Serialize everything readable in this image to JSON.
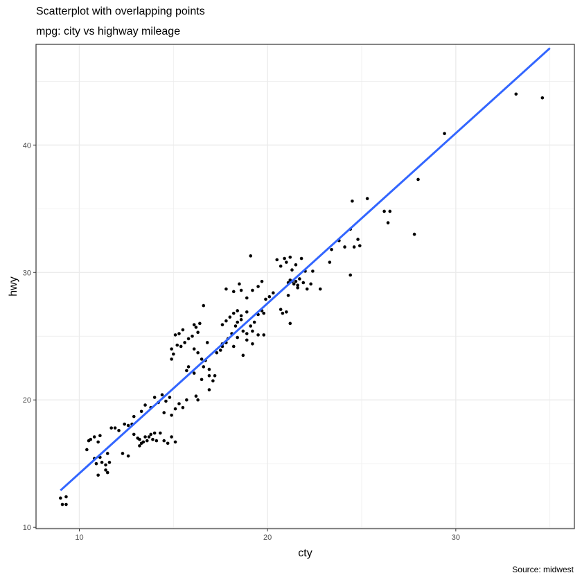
{
  "chart_data": {
    "type": "scatter",
    "title": "Scatterplot with overlapping points",
    "subtitle": "mpg: city vs highway mileage",
    "caption": "Source: midwest",
    "xlabel": "cty",
    "ylabel": "hwy",
    "xlim": [
      7.7,
      36.3
    ],
    "ylim": [
      9.9,
      47.9
    ],
    "x_ticks": [
      10,
      20,
      30
    ],
    "x_tick_labels": [
      "10",
      "20",
      "30"
    ],
    "y_ticks": [
      10,
      20,
      30,
      40
    ],
    "y_tick_labels": [
      "10",
      "20",
      "30",
      "40"
    ],
    "grid": true,
    "points": [
      [
        9.0,
        12.3
      ],
      [
        9.3,
        12.4
      ],
      [
        9.1,
        11.8
      ],
      [
        9.3,
        11.8
      ],
      [
        10.4,
        16.1
      ],
      [
        10.6,
        16.9
      ],
      [
        10.8,
        17.1
      ],
      [
        10.5,
        16.8
      ],
      [
        10.8,
        15.4
      ],
      [
        10.9,
        15.0
      ],
      [
        11.1,
        15.5
      ],
      [
        11.1,
        17.2
      ],
      [
        11.0,
        16.7
      ],
      [
        11.0,
        14.1
      ],
      [
        11.2,
        15.1
      ],
      [
        11.4,
        14.9
      ],
      [
        11.4,
        14.5
      ],
      [
        11.5,
        14.3
      ],
      [
        11.6,
        15.1
      ],
      [
        11.5,
        15.8
      ],
      [
        11.7,
        17.8
      ],
      [
        11.9,
        17.8
      ],
      [
        12.1,
        17.6
      ],
      [
        12.4,
        18.1
      ],
      [
        12.6,
        18.0
      ],
      [
        12.8,
        18.1
      ],
      [
        12.9,
        18.7
      ],
      [
        12.3,
        15.8
      ],
      [
        12.6,
        15.6
      ],
      [
        12.9,
        17.3
      ],
      [
        13.1,
        17.0
      ],
      [
        13.2,
        16.9
      ],
      [
        13.3,
        16.6
      ],
      [
        13.2,
        16.4
      ],
      [
        13.4,
        16.7
      ],
      [
        13.5,
        17.1
      ],
      [
        13.6,
        16.8
      ],
      [
        13.7,
        17.1
      ],
      [
        13.8,
        17.3
      ],
      [
        13.9,
        16.9
      ],
      [
        14.0,
        17.4
      ],
      [
        14.1,
        16.8
      ],
      [
        14.3,
        17.4
      ],
      [
        14.5,
        16.8
      ],
      [
        14.7,
        16.6
      ],
      [
        14.9,
        17.1
      ],
      [
        15.1,
        16.7
      ],
      [
        13.3,
        19.1
      ],
      [
        13.5,
        19.6
      ],
      [
        13.8,
        19.4
      ],
      [
        14.0,
        20.2
      ],
      [
        14.2,
        19.8
      ],
      [
        14.4,
        20.4
      ],
      [
        14.6,
        19.9
      ],
      [
        14.8,
        20.2
      ],
      [
        14.5,
        19.0
      ],
      [
        14.9,
        18.8
      ],
      [
        15.1,
        19.3
      ],
      [
        15.3,
        19.7
      ],
      [
        15.5,
        19.4
      ],
      [
        15.7,
        20.0
      ],
      [
        14.9,
        23.2
      ],
      [
        14.9,
        24.0
      ],
      [
        15.0,
        23.6
      ],
      [
        15.2,
        24.3
      ],
      [
        15.1,
        25.1
      ],
      [
        15.3,
        25.2
      ],
      [
        15.4,
        24.2
      ],
      [
        15.6,
        24.5
      ],
      [
        15.5,
        25.5
      ],
      [
        15.8,
        24.8
      ],
      [
        16.0,
        25.0
      ],
      [
        16.1,
        25.9
      ],
      [
        16.2,
        25.7
      ],
      [
        16.3,
        25.3
      ],
      [
        16.4,
        26.0
      ],
      [
        16.6,
        27.4
      ],
      [
        16.1,
        24.0
      ],
      [
        16.3,
        23.7
      ],
      [
        16.5,
        23.2
      ],
      [
        16.7,
        23.1
      ],
      [
        16.8,
        24.5
      ],
      [
        16.6,
        22.6
      ],
      [
        16.9,
        22.4
      ],
      [
        15.7,
        22.3
      ],
      [
        15.8,
        22.6
      ],
      [
        16.1,
        22.1
      ],
      [
        16.9,
        21.9
      ],
      [
        16.2,
        20.3
      ],
      [
        16.3,
        20.0
      ],
      [
        16.5,
        21.6
      ],
      [
        16.9,
        20.8
      ],
      [
        17.1,
        21.5
      ],
      [
        17.2,
        21.9
      ],
      [
        17.6,
        24.2
      ],
      [
        17.8,
        24.5
      ],
      [
        17.9,
        24.8
      ],
      [
        18.1,
        25.2
      ],
      [
        18.3,
        25.8
      ],
      [
        18.4,
        26.1
      ],
      [
        18.6,
        26.3
      ],
      [
        17.6,
        25.9
      ],
      [
        17.8,
        26.2
      ],
      [
        18.0,
        26.5
      ],
      [
        18.2,
        26.8
      ],
      [
        18.4,
        27.0
      ],
      [
        18.6,
        26.6
      ],
      [
        18.9,
        26.9
      ],
      [
        18.7,
        25.4
      ],
      [
        18.9,
        25.2
      ],
      [
        19.1,
        25.8
      ],
      [
        19.3,
        26.1
      ],
      [
        19.5,
        26.7
      ],
      [
        19.7,
        27.0
      ],
      [
        19.8,
        26.8
      ],
      [
        19.9,
        27.9
      ],
      [
        20.1,
        28.1
      ],
      [
        20.3,
        28.4
      ],
      [
        18.2,
        28.5
      ],
      [
        18.5,
        29.1
      ],
      [
        18.6,
        28.6
      ],
      [
        18.9,
        28.0
      ],
      [
        19.2,
        28.6
      ],
      [
        19.5,
        28.9
      ],
      [
        19.7,
        29.3
      ],
      [
        17.8,
        28.7
      ],
      [
        17.3,
        23.7
      ],
      [
        17.5,
        23.9
      ],
      [
        17.6,
        24.4
      ],
      [
        18.2,
        24.2
      ],
      [
        18.4,
        24.9
      ],
      [
        18.7,
        23.5
      ],
      [
        18.9,
        24.7
      ],
      [
        19.2,
        25.4
      ],
      [
        19.5,
        25.1
      ],
      [
        19.8,
        25.1
      ],
      [
        19.2,
        24.4
      ],
      [
        19.1,
        31.3
      ],
      [
        20.5,
        31.0
      ],
      [
        20.7,
        30.5
      ],
      [
        20.9,
        31.1
      ],
      [
        21.0,
        30.8
      ],
      [
        21.2,
        31.2
      ],
      [
        21.8,
        31.1
      ],
      [
        21.1,
        29.2
      ],
      [
        21.2,
        29.4
      ],
      [
        21.4,
        29.1
      ],
      [
        21.5,
        29.3
      ],
      [
        21.6,
        29.0
      ],
      [
        21.7,
        29.5
      ],
      [
        21.9,
        29.2
      ],
      [
        21.3,
        29.3
      ],
      [
        21.6,
        28.8
      ],
      [
        22.1,
        28.7
      ],
      [
        22.3,
        29.1
      ],
      [
        21.3,
        30.2
      ],
      [
        21.5,
        30.6
      ],
      [
        22.0,
        30.1
      ],
      [
        20.7,
        27.1
      ],
      [
        20.8,
        26.8
      ],
      [
        21.0,
        26.9
      ],
      [
        21.1,
        28.2
      ],
      [
        21.2,
        26.0
      ],
      [
        22.4,
        30.1
      ],
      [
        22.8,
        28.7
      ],
      [
        23.3,
        30.8
      ],
      [
        23.4,
        31.8
      ],
      [
        23.8,
        32.5
      ],
      [
        24.1,
        32.0
      ],
      [
        24.4,
        33.4
      ],
      [
        24.5,
        35.6
      ],
      [
        25.3,
        35.8
      ],
      [
        24.4,
        29.8
      ],
      [
        24.6,
        32.0
      ],
      [
        24.8,
        32.6
      ],
      [
        24.9,
        32.1
      ],
      [
        26.2,
        34.8
      ],
      [
        26.5,
        34.8
      ],
      [
        26.4,
        33.9
      ],
      [
        27.8,
        33.0
      ],
      [
        28.0,
        37.3
      ],
      [
        29.4,
        40.9
      ],
      [
        33.2,
        44.0
      ],
      [
        34.6,
        43.7
      ]
    ],
    "trend_line": {
      "x": [
        9.0,
        35.0
      ],
      "y": [
        12.9,
        47.6
      ],
      "color": "#3366ff"
    },
    "point_color": "#000000",
    "grid_color": "#ebebeb",
    "panel_border_color": "#333333"
  }
}
